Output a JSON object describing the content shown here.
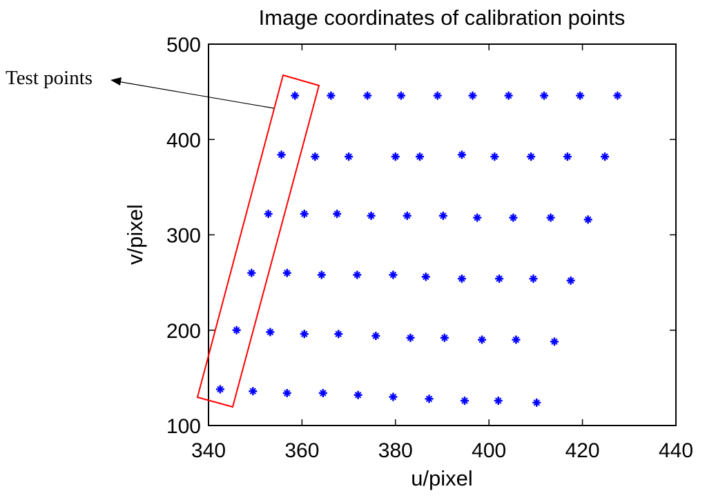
{
  "chart_data": {
    "type": "scatter",
    "title": "Image coordinates of calibration points",
    "xlabel": "u/pixel",
    "ylabel": "v/pixel",
    "xlim": [
      340,
      440
    ],
    "ylim": [
      100,
      500
    ],
    "xticks": [
      "340",
      "360",
      "380",
      "400",
      "420",
      "440"
    ],
    "yticks": [
      "100",
      "200",
      "300",
      "400",
      "500"
    ],
    "grid": false,
    "marker_color": "#0000ff",
    "highlight_color": "#ff0000",
    "annotation": "Test points",
    "rows": [
      {
        "x": [
          358.5,
          366.2,
          374.0,
          381.2,
          389.0,
          396.5,
          404.2,
          411.8,
          419.5,
          427.5
        ],
        "y": [
          446,
          446,
          446,
          446,
          446,
          446,
          446,
          446,
          446,
          446
        ]
      },
      {
        "x": [
          355.6,
          362.8,
          370.0,
          380.0,
          385.2,
          394.2,
          401.2,
          409.0,
          416.8,
          424.8
        ],
        "y": [
          384,
          382,
          382,
          382,
          382,
          384,
          382,
          382,
          382,
          382
        ]
      },
      {
        "x": [
          352.8,
          360.5,
          367.5,
          374.8,
          382.5,
          390.2,
          397.5,
          405.2,
          413.2,
          421.2
        ],
        "y": [
          322,
          322,
          322,
          320,
          320,
          320,
          318,
          318,
          318,
          316
        ]
      },
      {
        "x": [
          349.2,
          356.8,
          364.2,
          371.8,
          379.5,
          386.5,
          394.2,
          402.2,
          409.5,
          417.5
        ],
        "y": [
          260,
          260,
          258,
          258,
          258,
          256,
          254,
          254,
          254,
          252
        ]
      },
      {
        "x": [
          346.0,
          353.2,
          360.5,
          367.8,
          375.8,
          383.2,
          390.5,
          398.5,
          405.8,
          414.0
        ],
        "y": [
          200,
          198,
          196,
          196,
          194,
          192,
          192,
          190,
          190,
          188
        ]
      },
      {
        "x": [
          342.5,
          349.5,
          356.8,
          364.5,
          372.0,
          379.5,
          387.2,
          394.8,
          402.0,
          410.2
        ],
        "y": [
          138,
          136,
          134,
          134,
          132,
          130,
          128,
          126,
          126,
          124
        ]
      }
    ]
  }
}
